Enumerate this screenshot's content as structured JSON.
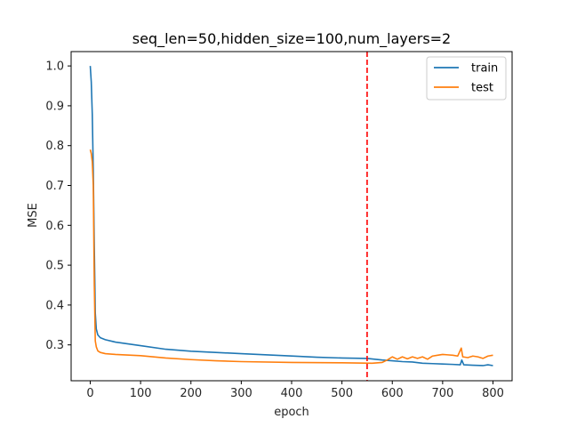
{
  "chart_data": {
    "type": "line",
    "title": "seq_len=50,hidden_size=100,num_layers=2",
    "xlabel": "epoch",
    "ylabel": "MSE",
    "xlim": [
      -38,
      838
    ],
    "ylim": [
      0.21,
      1.036
    ],
    "xticks": [
      "0",
      "100",
      "200",
      "300",
      "400",
      "500",
      "600",
      "700",
      "800"
    ],
    "yticks": [
      "0.3",
      "0.4",
      "0.5",
      "0.6",
      "0.7",
      "0.8",
      "0.9",
      "1.0"
    ],
    "legend_placement": "top-right",
    "grid": false,
    "vline": {
      "x": 550,
      "color": "#ff0000",
      "style": "dashed"
    },
    "series": [
      {
        "name": "train",
        "color": "#1f77b4",
        "points": [
          [
            0,
            1.0
          ],
          [
            2,
            0.96
          ],
          [
            4,
            0.88
          ],
          [
            6,
            0.74
          ],
          [
            8,
            0.55
          ],
          [
            10,
            0.38
          ],
          [
            12,
            0.34
          ],
          [
            15,
            0.325
          ],
          [
            20,
            0.318
          ],
          [
            30,
            0.313
          ],
          [
            50,
            0.307
          ],
          [
            100,
            0.298
          ],
          [
            150,
            0.289
          ],
          [
            200,
            0.284
          ],
          [
            300,
            0.278
          ],
          [
            400,
            0.272
          ],
          [
            450,
            0.269
          ],
          [
            500,
            0.267
          ],
          [
            550,
            0.266
          ],
          [
            580,
            0.262
          ],
          [
            600,
            0.26
          ],
          [
            620,
            0.258
          ],
          [
            640,
            0.257
          ],
          [
            660,
            0.254
          ],
          [
            680,
            0.253
          ],
          [
            700,
            0.252
          ],
          [
            720,
            0.251
          ],
          [
            735,
            0.25
          ],
          [
            738,
            0.262
          ],
          [
            742,
            0.25
          ],
          [
            760,
            0.249
          ],
          [
            780,
            0.248
          ],
          [
            790,
            0.25
          ],
          [
            800,
            0.248
          ]
        ]
      },
      {
        "name": "test",
        "color": "#ff7f0e",
        "points": [
          [
            0,
            0.79
          ],
          [
            2,
            0.78
          ],
          [
            4,
            0.76
          ],
          [
            6,
            0.7
          ],
          [
            8,
            0.45
          ],
          [
            10,
            0.31
          ],
          [
            12,
            0.295
          ],
          [
            15,
            0.285
          ],
          [
            20,
            0.281
          ],
          [
            30,
            0.278
          ],
          [
            50,
            0.276
          ],
          [
            100,
            0.273
          ],
          [
            150,
            0.267
          ],
          [
            200,
            0.263
          ],
          [
            250,
            0.26
          ],
          [
            300,
            0.258
          ],
          [
            400,
            0.256
          ],
          [
            500,
            0.255
          ],
          [
            560,
            0.254
          ],
          [
            580,
            0.256
          ],
          [
            590,
            0.262
          ],
          [
            600,
            0.27
          ],
          [
            610,
            0.264
          ],
          [
            620,
            0.27
          ],
          [
            630,
            0.265
          ],
          [
            640,
            0.27
          ],
          [
            650,
            0.266
          ],
          [
            660,
            0.27
          ],
          [
            670,
            0.264
          ],
          [
            680,
            0.272
          ],
          [
            690,
            0.274
          ],
          [
            700,
            0.276
          ],
          [
            710,
            0.275
          ],
          [
            720,
            0.274
          ],
          [
            730,
            0.272
          ],
          [
            737,
            0.292
          ],
          [
            740,
            0.27
          ],
          [
            750,
            0.268
          ],
          [
            760,
            0.272
          ],
          [
            770,
            0.27
          ],
          [
            780,
            0.266
          ],
          [
            790,
            0.272
          ],
          [
            800,
            0.274
          ]
        ]
      }
    ]
  }
}
